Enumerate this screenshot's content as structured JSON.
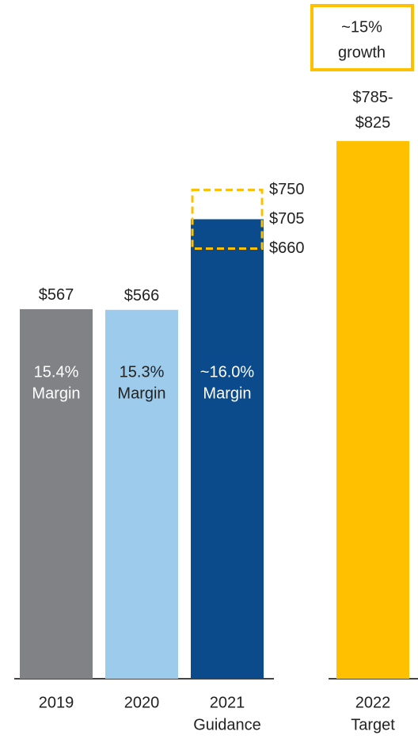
{
  "chart_data": {
    "type": "bar",
    "categories": [
      "2019",
      "2020",
      "2021",
      "2022"
    ],
    "sublabels": [
      null,
      null,
      "Guidance",
      "Target"
    ],
    "values": [
      567,
      566,
      705,
      null
    ],
    "value_labels": [
      "$567",
      "$566",
      "$705",
      null
    ],
    "ranges": [
      null,
      null,
      [
        660,
        750
      ],
      [
        785,
        825
      ]
    ],
    "range_labels": [
      null,
      null,
      [
        "$660",
        "$750"
      ],
      [
        "$785-",
        "$825"
      ]
    ],
    "margin_labels": [
      [
        "15.4%",
        "Margin"
      ],
      [
        "15.3%",
        "Margin"
      ],
      [
        "~16.0%",
        "Margin"
      ],
      null
    ],
    "colors": [
      "#808285",
      "#9dcbeb",
      "#0b4a8b",
      "#ffc000"
    ],
    "annotation": [
      "~15%",
      "growth"
    ],
    "ylim": [
      0,
      1000
    ]
  }
}
